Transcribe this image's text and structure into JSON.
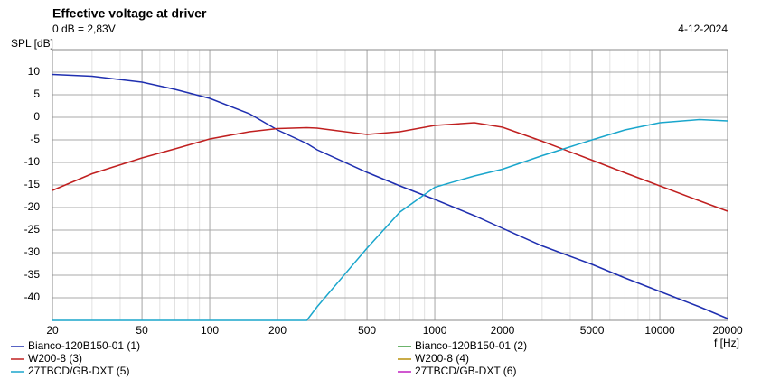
{
  "chart_data": {
    "type": "line",
    "title": "Effective voltage at driver",
    "subtitle": "0 dB = 2,83V",
    "date": "4-12-2024",
    "y_label": "SPL [dB]",
    "x_label": "f [Hz]",
    "x_scale": "log",
    "grid": true,
    "minor_grid": true,
    "x": [
      20,
      30,
      50,
      70,
      100,
      150,
      200,
      270,
      300,
      500,
      700,
      1000,
      1500,
      2000,
      3000,
      5000,
      7000,
      10000,
      15000,
      20000
    ],
    "xlim": [
      20,
      20000
    ],
    "xticks": [
      20,
      50,
      100,
      200,
      500,
      1000,
      2000,
      5000,
      10000,
      20000
    ],
    "ylim": [
      -45,
      15
    ],
    "yticks": [
      -40,
      -35,
      -30,
      -25,
      -20,
      -15,
      -10,
      -5,
      0,
      5,
      10
    ],
    "legend": "bottom",
    "series": [
      {
        "name": "Bianco-120B150-01 (1)",
        "color": "#1f2fb0",
        "values": [
          9.5,
          9.1,
          7.8,
          6.2,
          4.2,
          0.8,
          -2.8,
          -5.8,
          -7.2,
          -12.2,
          -15.2,
          -18.2,
          -21.8,
          -24.6,
          -28.5,
          -32.6,
          -35.6,
          -38.6,
          -42,
          -44.6
        ]
      },
      {
        "name": "Bianco-120B150-01 (2)",
        "color": "#3a9a3a",
        "values": [
          null,
          null,
          null,
          null,
          null,
          null,
          null,
          null,
          null,
          null,
          null,
          null,
          null,
          null,
          null,
          null,
          null,
          null,
          null,
          null
        ]
      },
      {
        "name": "W200-8 (3)",
        "color": "#c02020",
        "values": [
          -16.2,
          -12.5,
          -9,
          -7,
          -4.8,
          -3.2,
          -2.5,
          -2.3,
          -2.4,
          -3.8,
          -3.2,
          -1.8,
          -1.2,
          -2.2,
          -5.3,
          -9.5,
          -12.3,
          -15.2,
          -18.5,
          -20.8
        ]
      },
      {
        "name": "W200-8 (4)",
        "color": "#b8900a",
        "values": [
          null,
          null,
          null,
          null,
          null,
          null,
          null,
          null,
          null,
          null,
          null,
          null,
          null,
          null,
          null,
          null,
          null,
          null,
          null,
          null
        ]
      },
      {
        "name": "27TBCD/GB-DXT (5)",
        "color": "#1aa6cc",
        "values": [
          -45,
          -45,
          -45,
          -45,
          -45,
          -45,
          -45,
          -45,
          -42,
          -29,
          -21,
          -15.5,
          -13,
          -11.5,
          -8.5,
          -5,
          -2.8,
          -1.2,
          -0.5,
          -0.8
        ]
      },
      {
        "name": "27TBCD/GB-DXT (6)",
        "color": "#c020c0",
        "values": [
          null,
          null,
          null,
          null,
          null,
          null,
          null,
          null,
          null,
          null,
          null,
          null,
          null,
          null,
          null,
          null,
          null,
          null,
          null,
          null
        ]
      }
    ]
  }
}
